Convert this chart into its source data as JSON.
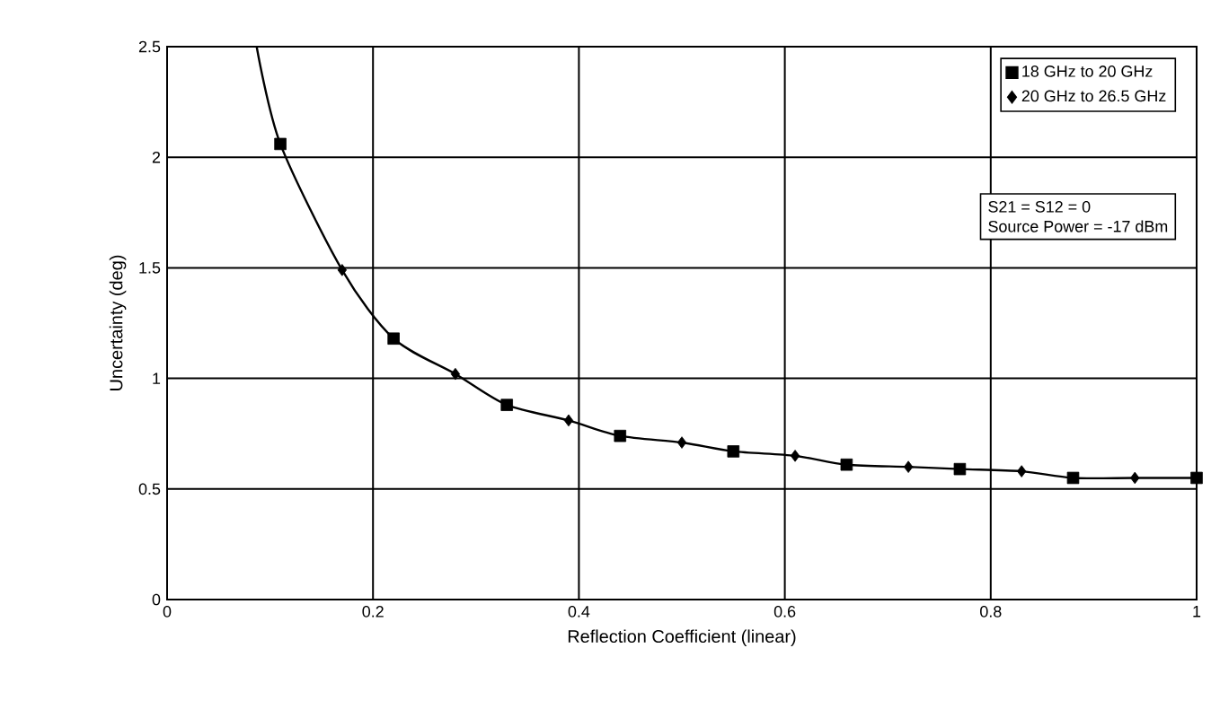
{
  "chart_data": {
    "type": "scatter",
    "xlabel": "Reflection Coefficient (linear)",
    "ylabel": "Uncertainty (deg)",
    "annotations": [
      "S21 = S12 = 0",
      "Source Power = -17 dBm"
    ],
    "series": [
      {
        "type": "line",
        "color": "#000000",
        "marker": "none",
        "x": [
          0.087,
          0.11,
          0.17,
          0.22,
          0.28,
          0.33,
          0.39,
          0.44,
          0.5,
          0.55,
          0.61,
          0.66,
          0.72,
          0.77,
          0.83,
          0.88,
          0.94,
          1.0
        ],
        "values": [
          2.5,
          2.06,
          1.49,
          1.18,
          1.02,
          0.88,
          0.81,
          0.74,
          0.71,
          0.67,
          0.65,
          0.61,
          0.6,
          0.59,
          0.58,
          0.55,
          0.55,
          0.55
        ]
      },
      {
        "name": "18 GHz to 20 GHz",
        "marker": "square",
        "color": "#000000",
        "x": [
          0.11,
          0.22,
          0.33,
          0.44,
          0.55,
          0.66,
          0.77,
          0.88,
          1.0
        ],
        "values": [
          2.06,
          1.18,
          0.88,
          0.74,
          0.67,
          0.61,
          0.59,
          0.55,
          0.55
        ]
      },
      {
        "name": "20 GHz to 26.5 GHz",
        "marker": "diamond",
        "color": "#000000",
        "x": [
          0.17,
          0.28,
          0.39,
          0.5,
          0.61,
          0.72,
          0.83,
          0.94
        ],
        "values": [
          1.49,
          1.02,
          0.81,
          0.71,
          0.65,
          0.6,
          0.58,
          0.55
        ]
      }
    ],
    "xlim": [
      0,
      1
    ],
    "ylim": [
      0,
      2.5
    ],
    "xticks": [
      0,
      0.2,
      0.4,
      0.6,
      0.8,
      1
    ],
    "yticks": [
      0,
      0.5,
      1,
      1.5,
      2,
      2.5
    ],
    "grid": true,
    "legend": "top right"
  }
}
